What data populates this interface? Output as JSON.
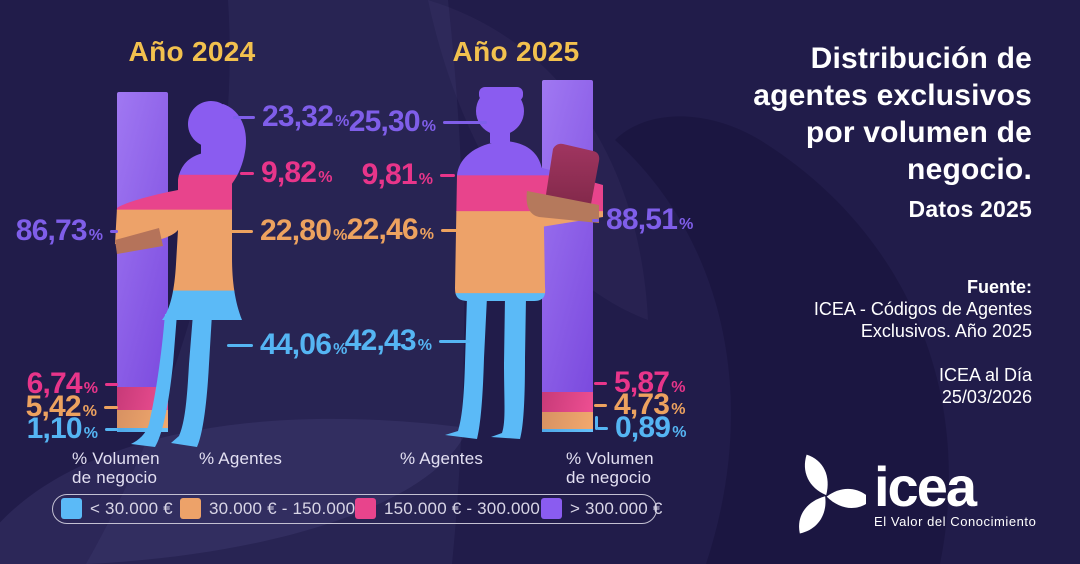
{
  "palette": {
    "background": "#211c4a",
    "purple": "#8a5cf0",
    "pink": "#e8448c",
    "orange": "#eda269",
    "blue": "#5bbaf7",
    "gold": "#f2c14e",
    "white": "#ffffff"
  },
  "chart_data": {
    "type": "bar",
    "title": "Distribución de agentes exclusivos por volumen de negocio. Datos 2025",
    "categories": [
      "< 30.000 €",
      "30.000 € - 150.000 €",
      "150.000 € - 300.000 €",
      "> 300.000 €"
    ],
    "series": [
      {
        "name": "Año 2024 - % Agentes",
        "values": [
          44.06,
          22.8,
          9.82,
          23.32
        ]
      },
      {
        "name": "Año 2024 - % Volumen de negocio",
        "values": [
          1.1,
          5.42,
          6.74,
          86.73
        ]
      },
      {
        "name": "Año 2025 - % Agentes",
        "values": [
          42.43,
          22.46,
          9.81,
          25.3
        ]
      },
      {
        "name": "Año 2025 - % Volumen de negocio",
        "values": [
          0.89,
          4.73,
          5.87,
          88.51
        ]
      }
    ],
    "legend_position": "bottom",
    "grid": false
  },
  "percent": "%",
  "y2024": {
    "title": "Año 2024",
    "agents": {
      "purple": "23,32",
      "pink": "9,82",
      "orange": "22,80",
      "blue": "44,06"
    },
    "volume": {
      "purple": "86,73",
      "pink": "6,74",
      "orange": "5,42",
      "blue": "1,10"
    },
    "volume_axis": [
      "% Volumen",
      "de negocio"
    ],
    "agents_axis": "% Agentes"
  },
  "y2025": {
    "title": "Año 2025",
    "agents": {
      "purple": "25,30",
      "pink": "9,81",
      "orange": "22,46",
      "blue": "42,43"
    },
    "volume": {
      "purple": "88,51",
      "pink": "5,87",
      "orange": "4,73",
      "blue": "0,89"
    },
    "volume_axis": [
      "% Volumen",
      "de negocio"
    ],
    "agents_axis": "% Agentes"
  },
  "legend": {
    "items": [
      {
        "label": "< 30.000 €",
        "color": "#5bbaf7"
      },
      {
        "label": "30.000 € - 150.000 €",
        "color": "#eda269"
      },
      {
        "label": "150.000 € - 300.000 €",
        "color": "#e8448c"
      },
      {
        "label": "> 300.000 €",
        "color": "#8a5cf0"
      }
    ]
  },
  "panel": {
    "title_lines": [
      "Distribución de",
      "agentes exclusivos",
      "por volumen de",
      "negocio."
    ],
    "subtitle": "Datos 2025",
    "source_heading": "Fuente:",
    "source_lines": [
      "ICEA - Códigos de Agentes",
      "Exclusivos. Año 2025"
    ],
    "publication": "ICEA al Día",
    "date": "25/03/2026"
  },
  "logo": {
    "name": "icea",
    "tagline": "El Valor del Conocimiento"
  }
}
